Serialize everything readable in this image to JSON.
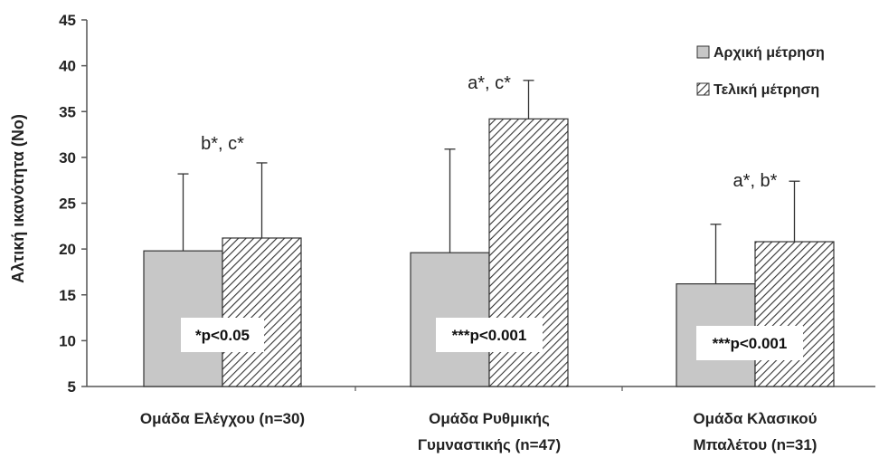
{
  "chart_data": {
    "type": "bar",
    "title": "",
    "xlabel": "",
    "ylabel": "Αλτική ικανότητα (No)",
    "ylim": [
      5,
      45
    ],
    "yticks": [
      5,
      10,
      15,
      20,
      25,
      30,
      35,
      40,
      45
    ],
    "grid": false,
    "legend_position": "top-right",
    "categories": [
      [
        "Ομάδα Ελέγχου (n=30)"
      ],
      [
        "Ομάδα Ρυθμικής",
        "Γυμναστικής (n=47)"
      ],
      [
        "Ομάδα Κλασικού",
        "Μπαλέτου (n=31)"
      ]
    ],
    "series": [
      {
        "name": "Αρχική μέτρηση",
        "values": [
          19.8,
          19.6,
          16.2
        ],
        "error_upper": [
          28.2,
          30.9,
          22.7
        ],
        "fill": "gray"
      },
      {
        "name": "Τελική μέτρηση",
        "values": [
          21.2,
          34.2,
          20.8
        ],
        "error_upper": [
          29.4,
          38.4,
          27.4
        ],
        "fill": "hatched"
      }
    ],
    "annotations": [
      "b*, c*",
      "a*, c*",
      "a*, b*"
    ],
    "p_values": [
      "*p<0.05",
      "***p<0.001",
      "***p<0.001"
    ]
  },
  "colors": {
    "gray_bar": "#c7c7c7",
    "hatch_line": "#333333",
    "axis": "#555555"
  }
}
